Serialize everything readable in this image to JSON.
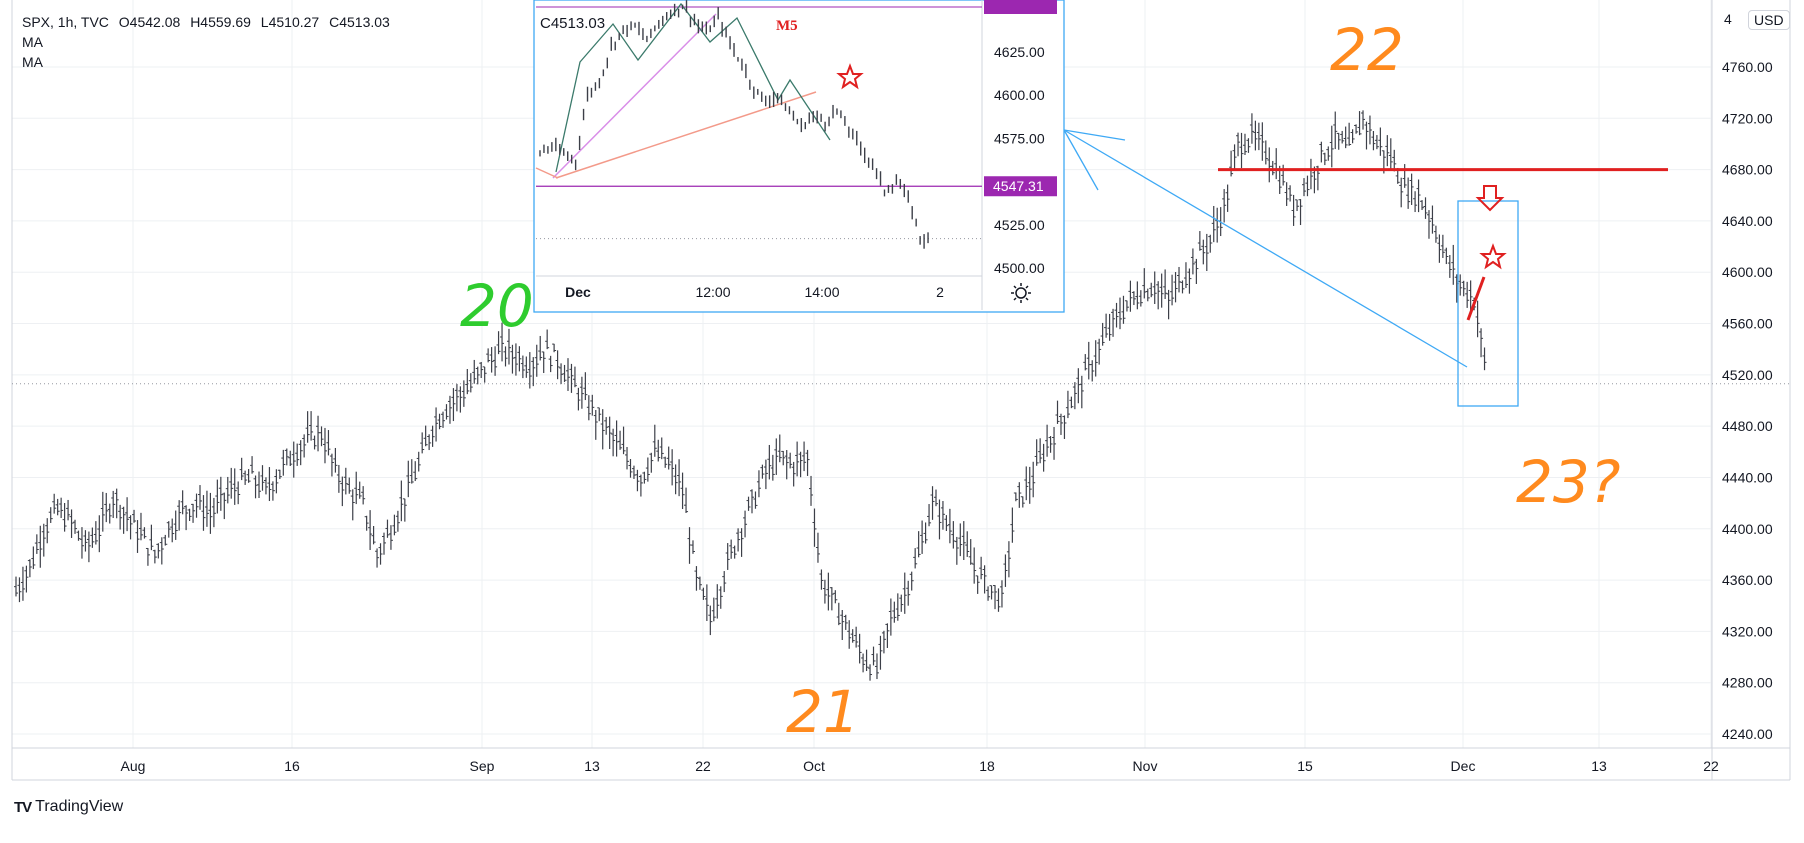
{
  "legend": {
    "symbol": "SPX, 1h, TVC",
    "open": "O4542.08",
    "high": "H4559.69",
    "low": "L4510.27",
    "close": "C4513.03",
    "ma1": "MA",
    "ma2": "MA"
  },
  "currency_badge": "USD",
  "brand": {
    "logo": "TV",
    "name": "TradingView"
  },
  "colors": {
    "up": "#131722",
    "grid": "#eef0f3",
    "red_line": "#e02020",
    "blue": "#3fa9f5",
    "orange": "#ff8a1e",
    "green": "#2ecc2e",
    "purple": "#9c27b0"
  },
  "chart_data": [
    {
      "type": "line",
      "title": "",
      "x_ticks": [
        "Aug",
        "16",
        "Sep",
        "13",
        "22",
        "Oct",
        "18",
        "Nov",
        "15",
        "Dec",
        "13",
        "22"
      ],
      "y_ticks": [
        4240,
        4280,
        4320,
        4360,
        4400,
        4440,
        4480,
        4520,
        4560,
        4600,
        4640,
        4680,
        4720,
        4760
      ],
      "y_top_partial_label": "4",
      "ylim": [
        4228,
        4800
      ],
      "grid": true,
      "series": [
        {
          "values": [
            4352,
            4370,
            4400,
            4415,
            4405,
            4385,
            4400,
            4425,
            4410,
            4395,
            4380,
            4400,
            4415,
            4420,
            4412,
            4425,
            4435,
            4440,
            4430,
            4445,
            4460,
            4470,
            4475,
            4445,
            4430,
            4420,
            4380,
            4400,
            4425,
            4450,
            4480,
            4495,
            4505,
            4515,
            4530,
            4540,
            4535,
            4528,
            4540,
            4532,
            4515,
            4500,
            4485,
            4470,
            4455,
            4440,
            4460,
            4450,
            4430,
            4360,
            4330,
            4365,
            4395,
            4420,
            4445,
            4455,
            4450,
            4455,
            4360,
            4340,
            4320,
            4300,
            4290,
            4330,
            4350,
            4380,
            4420,
            4405,
            4390,
            4370,
            4355,
            4345,
            4420,
            4435,
            4460,
            4480,
            4500,
            4520,
            4540,
            4560,
            4575,
            4585,
            4590,
            4578,
            4595,
            4610,
            4625,
            4650,
            4700,
            4705,
            4695,
            4675,
            4650,
            4670,
            4690,
            4705,
            4695,
            4720,
            4700,
            4690,
            4665,
            4660,
            4640,
            4610,
            4590,
            4580,
            4513
          ]
        }
      ],
      "annotations": [
        "20",
        "21",
        "22",
        "23?"
      ],
      "resistance_level": 4680,
      "last_price": 4513.03
    },
    {
      "type": "line",
      "title": "",
      "x_ticks": [
        "Dec",
        "12:00",
        "14:00",
        "2"
      ],
      "y_ticks": [
        4500.0,
        4525.0,
        4550.0,
        4575.0,
        4600.0,
        4625.0
      ],
      "ylim": [
        4498,
        4653
      ],
      "grid": false,
      "series": [
        {
          "values": [
            4567,
            4570,
            4566,
            4562,
            4600,
            4608,
            4628,
            4638,
            4640,
            4632,
            4642,
            4648,
            4652,
            4643,
            4636,
            4645,
            4630,
            4618,
            4604,
            4596,
            4600,
            4590,
            4582,
            4588,
            4585,
            4591,
            4580,
            4570,
            4560,
            4545,
            4550,
            4540,
            4518,
            4516
          ]
        }
      ],
      "price_label": "4547.31",
      "legend_close": "C4513.03",
      "timeframe_label": "M5"
    }
  ]
}
